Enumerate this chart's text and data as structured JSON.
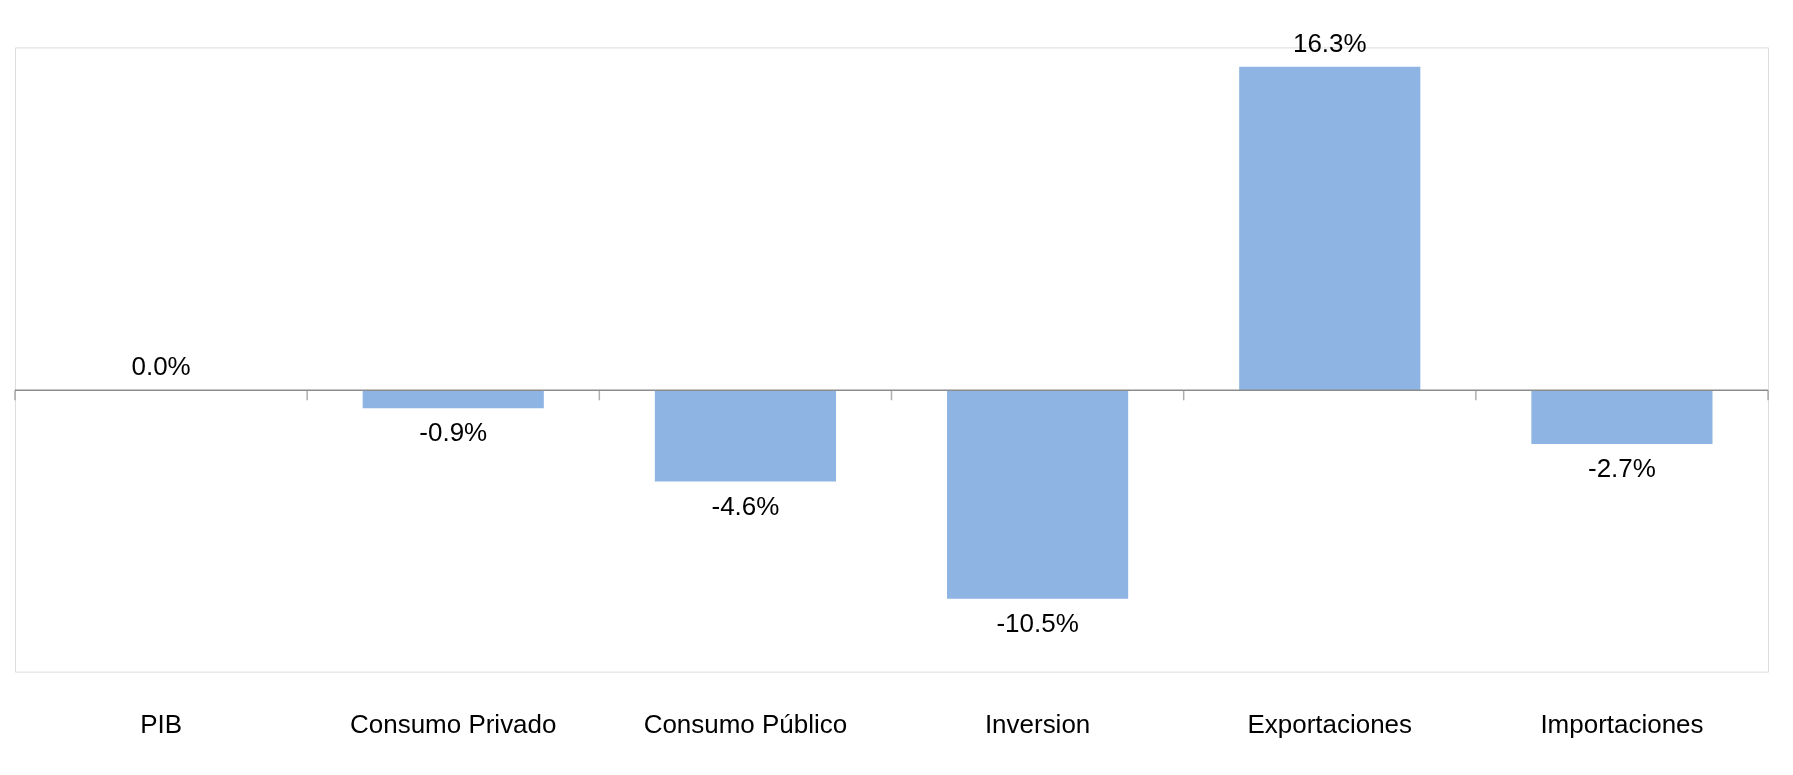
{
  "chart_data": {
    "type": "bar",
    "categories": [
      "PIB",
      "Consumo Privado",
      "Consumo Público",
      "Inversion",
      "Exportaciones",
      "Importaciones"
    ],
    "values": [
      0.0,
      -0.9,
      -4.6,
      -10.5,
      16.3,
      -2.7
    ],
    "value_labels": [
      "0.0%",
      "-0.9%",
      "-4.6%",
      "-10.5%",
      "16.3%",
      "-2.7%"
    ],
    "color": "#8eb4e3"
  }
}
